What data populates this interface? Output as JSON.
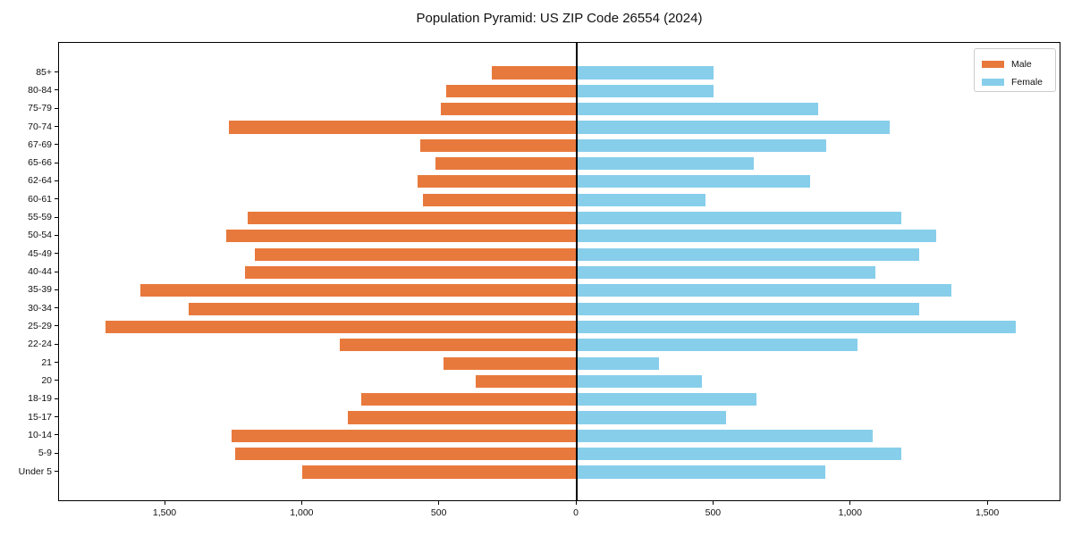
{
  "chart_data": {
    "type": "bar",
    "variant": "population-pyramid-horizontal",
    "title": "Population Pyramid: US ZIP Code 26554 (2024)",
    "categories": [
      "85+",
      "80-84",
      "75-79",
      "70-74",
      "67-69",
      "65-66",
      "62-64",
      "60-61",
      "55-59",
      "50-54",
      "45-49",
      "40-44",
      "35-39",
      "30-34",
      "25-29",
      "22-24",
      "21",
      "20",
      "18-19",
      "15-17",
      "10-14",
      "5-9",
      "Under 5"
    ],
    "series": [
      {
        "name": "Male",
        "side": "left",
        "color": "#e8793c",
        "values": [
          310,
          475,
          495,
          1270,
          570,
          515,
          580,
          560,
          1200,
          1280,
          1175,
          1210,
          1590,
          1415,
          1720,
          865,
          485,
          370,
          785,
          835,
          1260,
          1245,
          1000
        ]
      },
      {
        "name": "Female",
        "side": "right",
        "color": "#87ceeb",
        "values": [
          500,
          500,
          880,
          1140,
          910,
          645,
          850,
          470,
          1185,
          1310,
          1250,
          1090,
          1365,
          1250,
          1600,
          1025,
          300,
          455,
          655,
          545,
          1080,
          1185,
          905
        ]
      }
    ],
    "xticks": {
      "values": [
        -1500,
        -1000,
        -500,
        0,
        500,
        1000,
        1500
      ],
      "labels": [
        "1,500",
        "1,000",
        "500",
        "0",
        "500",
        "1,000",
        "1,500"
      ]
    },
    "xlim": [
      -1888,
      1767
    ],
    "grid": false,
    "legend_position": "upper-right",
    "axis_color": "#000000",
    "background_color": "#ffffff"
  }
}
